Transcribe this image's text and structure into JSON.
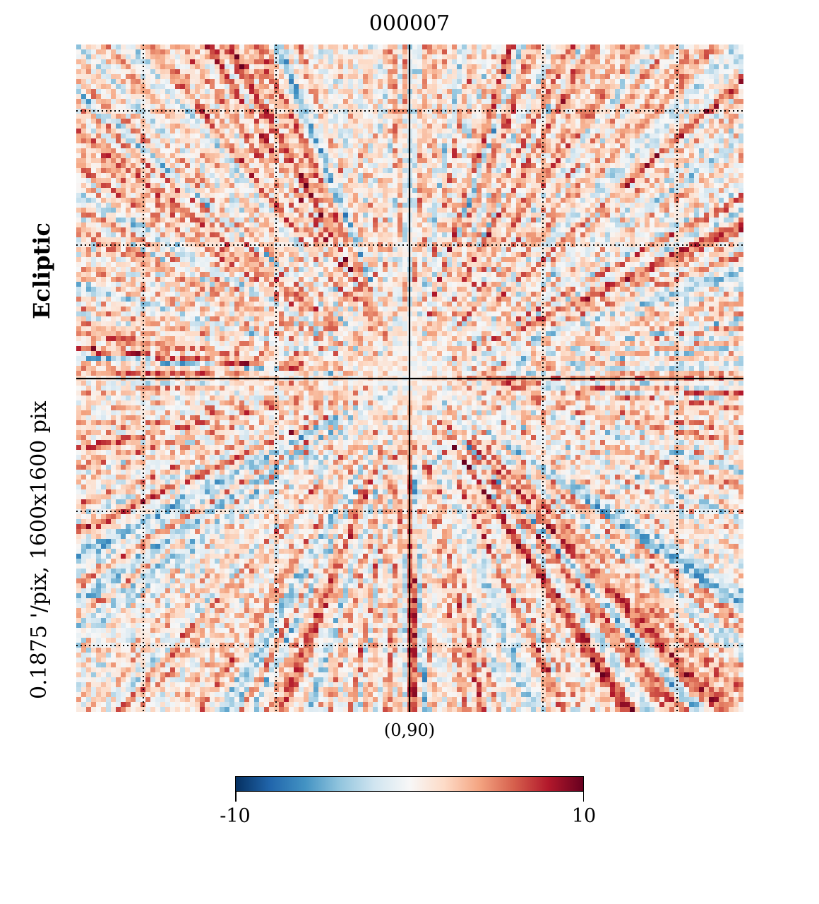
{
  "title": "000007",
  "side_label": {
    "resolution": "0.1875 '/pix,   1600x1600 pix",
    "coord": "Ecliptic"
  },
  "center_label": "(0,90)",
  "colorbar": {
    "min_label": "-10",
    "max_label": "10",
    "colors": [
      "#053061",
      "#2166ac",
      "#4393c3",
      "#92c5de",
      "#d1e5f0",
      "#f7f7f7",
      "#fddbc7",
      "#f4a582",
      "#d6604d",
      "#b2182b",
      "#67001f"
    ]
  },
  "chart_data": {
    "type": "heatmap",
    "title": "000007",
    "projection": "gnomonic",
    "center": "(0,90)",
    "coordinate_system": "Ecliptic",
    "resolution": "0.1875 '/pix",
    "size": "1600x1600 pix",
    "value_range": [
      -10,
      10
    ],
    "colormap": "RdBu_r",
    "graticule": "dotted",
    "axes_lines": "solid through center"
  }
}
